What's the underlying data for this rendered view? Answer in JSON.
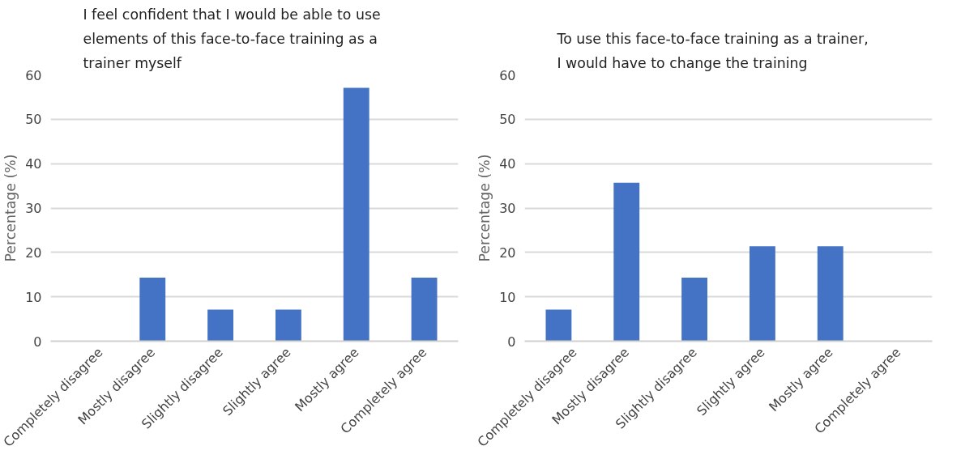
{
  "chart_data": [
    {
      "type": "bar",
      "title": "I feel confident that I would be able to use elements of this face-to-face training as a trainer myself",
      "ylabel": "Percentage (%)",
      "categories": [
        "Completely disagree",
        "Mostly disagree",
        "Slightly disagree",
        "Slightly agree",
        "Mostly agree",
        "Completely agree"
      ],
      "values": [
        0,
        14.3,
        7.1,
        7.1,
        57.1,
        14.3
      ],
      "color": "#4472c4",
      "ylim": [
        0,
        60
      ],
      "yticks": [
        0,
        10,
        20,
        30,
        40,
        50,
        60
      ],
      "grid": "y"
    },
    {
      "type": "bar",
      "title": "To use this face-to-face training as a trainer, I would have to change the training",
      "ylabel": "Percentage (%)",
      "categories": [
        "Completely disagree",
        "Mostly disagree",
        "Slightly disagree",
        "Slightly agree",
        "Mostly agree",
        "Completely agree"
      ],
      "values": [
        7.1,
        35.7,
        14.3,
        21.4,
        21.4,
        0
      ],
      "color": "#4472c4",
      "ylim": [
        0,
        60
      ],
      "yticks": [
        0,
        10,
        20,
        30,
        40,
        50,
        60
      ],
      "grid": "y"
    }
  ]
}
